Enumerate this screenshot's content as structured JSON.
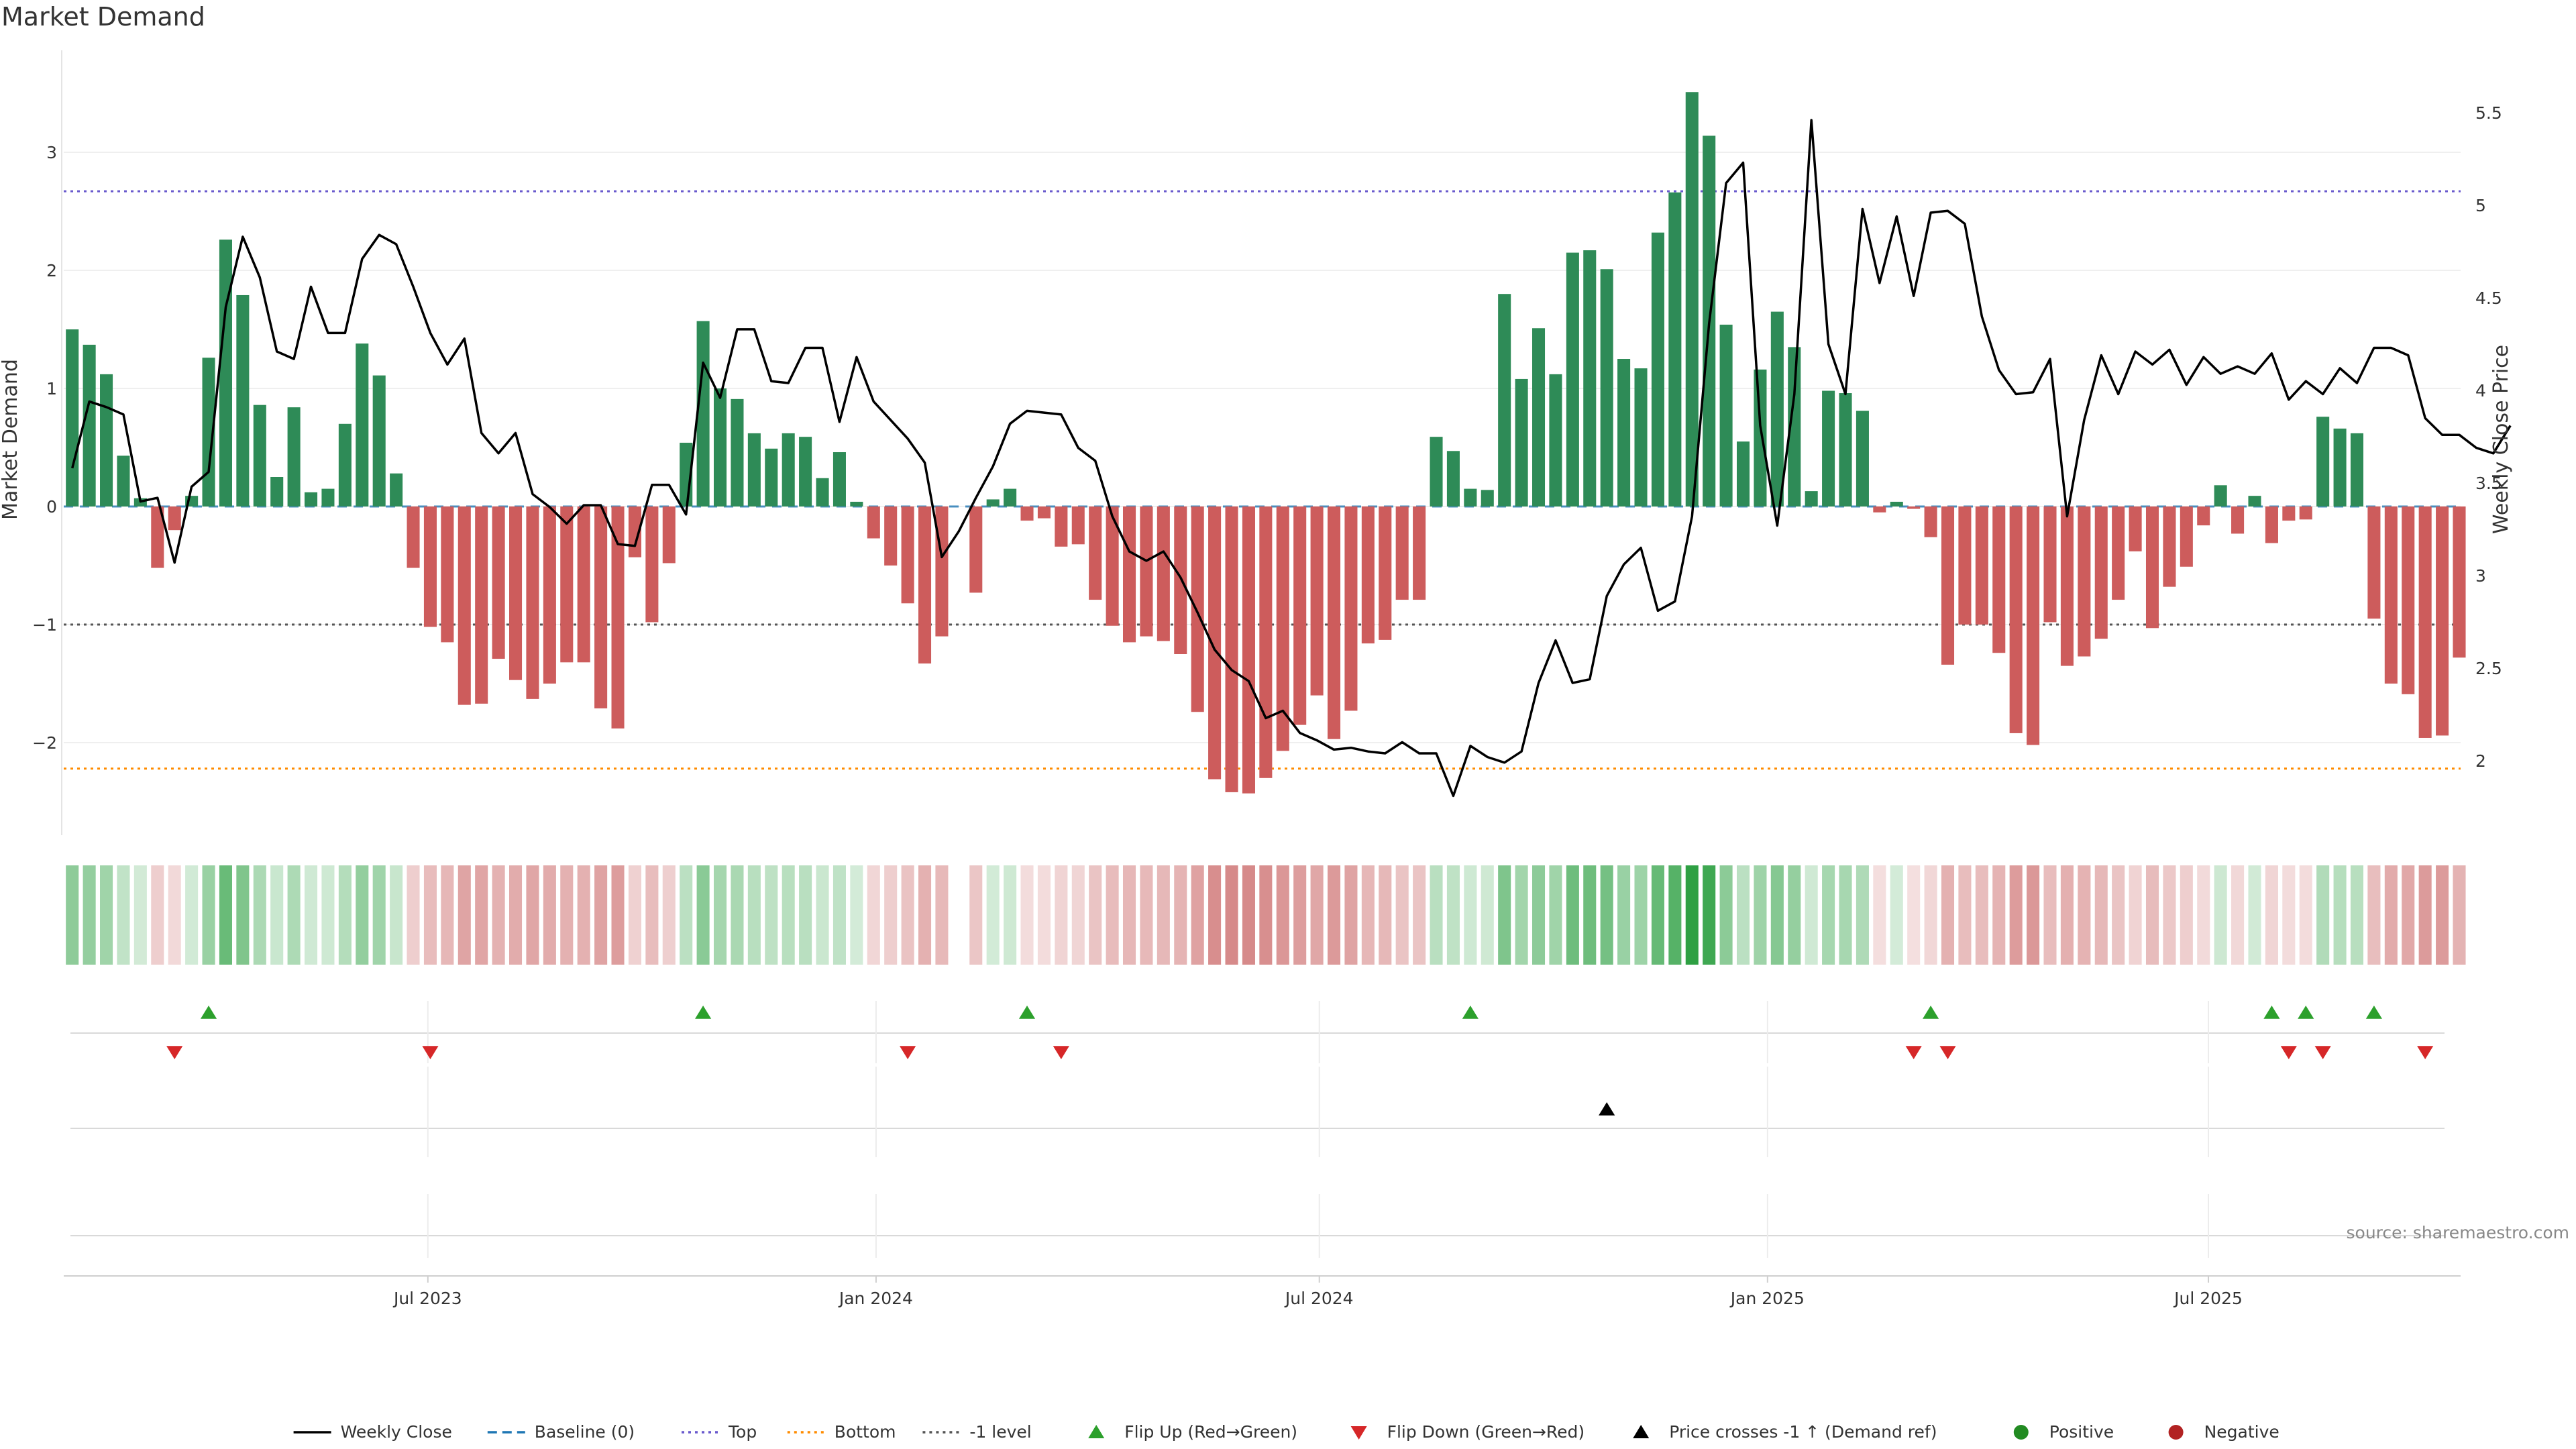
{
  "chart_data": {
    "type": "bar",
    "title": "Market Demand",
    "ylabel_left": "Market Demand",
    "ylabel_right": "Weekly Close Price",
    "ylim_left": [
      -2.7,
      3.9
    ],
    "ylim_right": [
      1.7,
      5.75
    ],
    "yticks_left": [
      -2,
      -1,
      0,
      1,
      2,
      3
    ],
    "yticks_right": [
      2,
      2.5,
      3,
      3.5,
      4,
      4.5,
      5,
      5.5
    ],
    "yticks_left_labels": [
      "−2",
      "−1",
      "0",
      "1",
      "2",
      "3"
    ],
    "yticks_right_labels": [
      "2",
      "2.5",
      "3",
      "3.5",
      "4",
      "4.5",
      "5",
      "5.5"
    ],
    "x_start": "2023-02-05",
    "x_end": "2025-10-12",
    "x_step_days": 7,
    "x_ticks": [
      {
        "label": "Jul 2023",
        "date": "2023-07-01"
      },
      {
        "label": "Jan 2024",
        "date": "2024-01-01"
      },
      {
        "label": "Jul 2024",
        "date": "2024-07-01"
      },
      {
        "label": "Jan 2025",
        "date": "2025-01-01"
      },
      {
        "label": "Jul 2025",
        "date": "2025-07-01"
      }
    ],
    "reference_lines": {
      "top": 2.67,
      "bottom": -2.22,
      "minus_one": -1,
      "baseline": 0
    },
    "colors": {
      "positive": "#2e8b57",
      "negative": "#cd5c5c",
      "price": "#000000",
      "top_line": "#6a5acd",
      "bottom_line": "#ff8c00",
      "minus_one_line": "#555555",
      "baseline_line": "#1f77b4",
      "flip_up": "#2ca02c",
      "flip_down": "#d62728",
      "price_cross": "#000000",
      "legend_positive": "#228b22",
      "legend_negative": "#b22222"
    },
    "demand": [
      1.5,
      1.37,
      1.12,
      0.43,
      0.07,
      -0.52,
      -0.2,
      0.09,
      1.26,
      2.26,
      1.79,
      0.86,
      0.25,
      0.84,
      0.12,
      0.15,
      0.7,
      1.38,
      1.11,
      0.28,
      -0.52,
      -1.02,
      -1.15,
      -1.68,
      -1.67,
      -1.29,
      -1.47,
      -1.63,
      -1.5,
      -1.32,
      -1.32,
      -1.71,
      -1.88,
      -0.43,
      -0.98,
      -0.48,
      0.54,
      1.57,
      1.0,
      0.91,
      0.62,
      0.49,
      0.62,
      0.59,
      0.24,
      0.46,
      0.04,
      -0.27,
      -0.5,
      -0.82,
      -1.33,
      -1.1,
      null,
      -0.73,
      0.06,
      0.15,
      -0.12,
      -0.1,
      -0.34,
      -0.32,
      -0.79,
      -1.01,
      -1.15,
      -1.1,
      -1.14,
      -1.25,
      -1.74,
      -2.31,
      -2.42,
      -2.43,
      -2.3,
      -2.07,
      -1.85,
      -1.6,
      -1.97,
      -1.73,
      -1.16,
      -1.13,
      -0.79,
      -0.79,
      0.59,
      0.47,
      0.15,
      0.14,
      1.8,
      1.08,
      1.51,
      1.12,
      2.15,
      2.17,
      2.01,
      1.25,
      1.17,
      2.32,
      2.66,
      3.51,
      3.14,
      1.54,
      0.55,
      1.16,
      1.65,
      1.35,
      0.13,
      0.98,
      0.96,
      0.81,
      -0.05,
      0.04,
      -0.02,
      -0.26,
      -1.34,
      -1.0,
      -1.0,
      -1.24,
      -1.92,
      -2.02,
      -0.98,
      -1.35,
      -1.27,
      -1.12,
      -0.79,
      -0.38,
      -1.03,
      -0.68,
      -0.51,
      -0.16,
      0.18,
      -0.23,
      0.09,
      -0.31,
      -0.12,
      -0.11,
      0.76,
      0.66,
      0.62,
      -0.95,
      -1.5,
      -1.59,
      -1.96,
      -1.94,
      -1.28
    ],
    "price": [
      3.58,
      3.94,
      3.91,
      3.87,
      3.4,
      3.42,
      3.07,
      3.48,
      3.56,
      4.45,
      4.83,
      4.61,
      4.21,
      4.17,
      4.56,
      4.31,
      4.31,
      4.71,
      4.84,
      4.79,
      4.56,
      4.31,
      4.14,
      4.28,
      3.77,
      3.66,
      3.77,
      3.44,
      3.37,
      3.28,
      3.38,
      3.38,
      3.17,
      3.16,
      3.49,
      3.49,
      3.33,
      4.15,
      3.96,
      4.33,
      4.33,
      4.05,
      4.04,
      4.23,
      4.23,
      3.83,
      4.18,
      3.94,
      3.84,
      3.74,
      3.61,
      3.1,
      3.24,
      3.42,
      3.59,
      3.82,
      3.89,
      3.88,
      3.87,
      3.69,
      3.62,
      3.32,
      3.13,
      3.08,
      3.13,
      2.99,
      2.8,
      2.6,
      2.49,
      2.43,
      2.23,
      2.27,
      2.15,
      2.11,
      2.06,
      2.07,
      2.05,
      2.04,
      2.1,
      2.04,
      2.04,
      1.81,
      2.08,
      2.02,
      1.99,
      2.05,
      2.42,
      2.65,
      2.42,
      2.44,
      2.89,
      3.06,
      3.15,
      2.81,
      2.86,
      3.32,
      4.36,
      5.12,
      5.23,
      3.81,
      3.27,
      3.98,
      5.46,
      4.25,
      3.98,
      4.98,
      4.58,
      4.94,
      4.51,
      4.96,
      4.97,
      4.9,
      4.4,
      4.11,
      3.98,
      3.99,
      4.17,
      3.32,
      3.84,
      4.19,
      3.98,
      4.21,
      4.14,
      4.22,
      4.03,
      4.18,
      4.09,
      4.13,
      4.09,
      4.2,
      3.95,
      4.05,
      3.98,
      4.12,
      4.04,
      4.23,
      4.23,
      4.19,
      3.85,
      3.76,
      3.76,
      3.69,
      3.66,
      3.81
    ],
    "flip_up": [
      8,
      37,
      56,
      82,
      109,
      129,
      131,
      135
    ],
    "flip_down": [
      6,
      21,
      49,
      58,
      108,
      110,
      130,
      132,
      138
    ],
    "price_cross_up": [
      90
    ],
    "annotation": "source: sharemaestro.com",
    "legend": [
      {
        "label": "Weekly Close",
        "kind": "line-solid",
        "color": "#000000"
      },
      {
        "label": "Baseline (0)",
        "kind": "line-dash",
        "color": "#1f77b4"
      },
      {
        "label": "Top",
        "kind": "line-dot",
        "color": "#6a5acd"
      },
      {
        "label": "Bottom",
        "kind": "line-dot",
        "color": "#ff8c00"
      },
      {
        "label": "-1 level",
        "kind": "line-dot",
        "color": "#555555"
      },
      {
        "label": "Flip Up (Red→Green)",
        "kind": "tri-up",
        "color": "#2ca02c"
      },
      {
        "label": "Flip Down (Green→Red)",
        "kind": "tri-down",
        "color": "#d62728"
      },
      {
        "label": "Price crosses -1 ↑ (Demand ref)",
        "kind": "tri-up",
        "color": "#000000"
      },
      {
        "label": "Positive",
        "kind": "circle",
        "color": "#228b22"
      },
      {
        "label": "Negative",
        "kind": "circle",
        "color": "#b22222"
      }
    ]
  }
}
